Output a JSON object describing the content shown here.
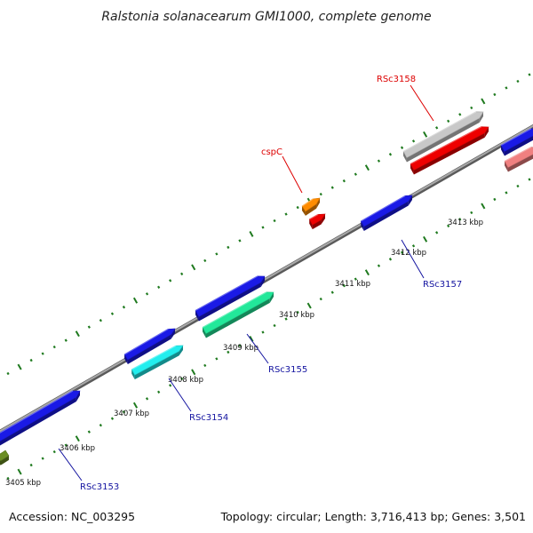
{
  "title": "Ralstonia solanacearum GMI1000, complete genome",
  "footer": {
    "accession": "Accession: NC_003295",
    "info": "Topology: circular; Length: 3,716,413 bp; Genes: 3,501"
  },
  "colors": {
    "backbone": "#8a8a8a",
    "tick": "#1f7a1f",
    "label_red": "#dd0000",
    "label_blue": "#1414a0"
  },
  "axis": {
    "unit": "kbp",
    "labels": [
      "3405 kbp",
      "3406 kbp",
      "3407 kbp",
      "3408 kbp",
      "3409 kbp",
      "3410 kbp",
      "3411 kbp",
      "3412 kbp",
      "3413 kbp"
    ]
  },
  "genes": [
    {
      "name": "RSc3153",
      "color": "#1a1ae6"
    },
    {
      "color": "#6b8e23"
    },
    {
      "name": "RSc3154",
      "color": "#22eeee"
    },
    {
      "color": "#1a1ae6"
    },
    {
      "name": "RSc3155",
      "color": "#22e89a"
    },
    {
      "color": "#1a1ae6"
    },
    {
      "name": "RSc3157",
      "color": "#1a1ae6"
    },
    {
      "name": "cspC",
      "color": "#ff8c00"
    },
    {
      "color": "#ee0000"
    },
    {
      "name": "RSc3158",
      "color": "#c8c8c8"
    },
    {
      "color": "#ee0000"
    },
    {
      "color": "#1a1ae6"
    },
    {
      "color": "#f08080"
    }
  ]
}
